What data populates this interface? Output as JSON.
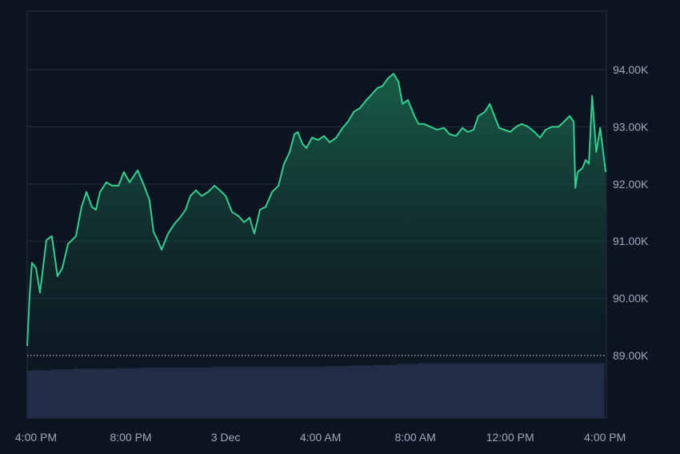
{
  "chart_data": {
    "type": "area",
    "title": "",
    "xlabel": "",
    "ylabel": "",
    "ylim": [
      88.0,
      95.0
    ],
    "y_unit": "K",
    "grid": true,
    "legend": "none",
    "baseline": 89.0,
    "y_ticks": [
      {
        "value": 94,
        "label": "94.00K"
      },
      {
        "value": 93,
        "label": "93.00K"
      },
      {
        "value": 92,
        "label": "92.00K"
      },
      {
        "value": 91,
        "label": "91.00K"
      },
      {
        "value": 90,
        "label": "90.00K"
      },
      {
        "value": 89,
        "label": "89.00K"
      }
    ],
    "x_ticks": [
      {
        "hours": 0,
        "label": "4:00 PM"
      },
      {
        "hours": 4,
        "label": "8:00 PM"
      },
      {
        "hours": 8,
        "label": "3 Dec"
      },
      {
        "hours": 12,
        "label": "4:00 AM"
      },
      {
        "hours": 16,
        "label": "8:00 AM"
      },
      {
        "hours": 20,
        "label": "12:00 PM"
      },
      {
        "hours": 24,
        "label": "4:00 PM"
      }
    ],
    "x_unit": "hours since 4:00 PM",
    "xlim": [
      -0.37,
      24.06
    ],
    "series": [
      {
        "name": "Price",
        "color": "#2fd08f",
        "points": [
          [
            -0.37,
            89.17
          ],
          [
            -0.27,
            90.04
          ],
          [
            -0.17,
            90.62
          ],
          [
            0,
            90.53
          ],
          [
            0.17,
            90.1
          ],
          [
            0.44,
            91.02
          ],
          [
            0.67,
            91.09
          ],
          [
            0.91,
            90.39
          ],
          [
            1.11,
            90.53
          ],
          [
            1.35,
            90.95
          ],
          [
            1.52,
            91.02
          ],
          [
            1.69,
            91.09
          ],
          [
            1.92,
            91.6
          ],
          [
            2.13,
            91.86
          ],
          [
            2.36,
            91.6
          ],
          [
            2.53,
            91.55
          ],
          [
            2.7,
            91.86
          ],
          [
            2.97,
            92.03
          ],
          [
            3.21,
            91.97
          ],
          [
            3.48,
            91.97
          ],
          [
            3.71,
            92.21
          ],
          [
            3.95,
            92.03
          ],
          [
            4.29,
            92.24
          ],
          [
            4.56,
            91.97
          ],
          [
            4.79,
            91.72
          ],
          [
            4.96,
            91.16
          ],
          [
            5.13,
            91.02
          ],
          [
            5.3,
            90.85
          ],
          [
            5.57,
            91.13
          ],
          [
            5.84,
            91.3
          ],
          [
            6.07,
            91.41
          ],
          [
            6.31,
            91.55
          ],
          [
            6.51,
            91.79
          ],
          [
            6.75,
            91.89
          ],
          [
            6.99,
            91.79
          ],
          [
            7.26,
            91.86
          ],
          [
            7.53,
            91.97
          ],
          [
            7.76,
            91.89
          ],
          [
            8.0,
            91.79
          ],
          [
            8.27,
            91.51
          ],
          [
            8.54,
            91.44
          ],
          [
            8.78,
            91.33
          ],
          [
            9.01,
            91.41
          ],
          [
            9.21,
            91.13
          ],
          [
            9.45,
            91.55
          ],
          [
            9.69,
            91.6
          ],
          [
            9.96,
            91.86
          ],
          [
            10.23,
            91.97
          ],
          [
            10.46,
            92.35
          ],
          [
            10.7,
            92.56
          ],
          [
            10.9,
            92.87
          ],
          [
            11.04,
            92.91
          ],
          [
            11.24,
            92.7
          ],
          [
            11.41,
            92.63
          ],
          [
            11.64,
            92.81
          ],
          [
            11.91,
            92.77
          ],
          [
            12.15,
            92.84
          ],
          [
            12.39,
            92.73
          ],
          [
            12.66,
            92.81
          ],
          [
            12.93,
            92.98
          ],
          [
            13.16,
            93.09
          ],
          [
            13.4,
            93.26
          ],
          [
            13.67,
            93.33
          ],
          [
            13.94,
            93.47
          ],
          [
            14.17,
            93.57
          ],
          [
            14.41,
            93.68
          ],
          [
            14.61,
            93.71
          ],
          [
            14.85,
            93.85
          ],
          [
            15.08,
            93.93
          ],
          [
            15.29,
            93.79
          ],
          [
            15.46,
            93.4
          ],
          [
            15.69,
            93.47
          ],
          [
            15.96,
            93.19
          ],
          [
            16.13,
            93.05
          ],
          [
            16.37,
            93.05
          ],
          [
            16.64,
            93.0
          ],
          [
            16.91,
            92.95
          ],
          [
            17.21,
            92.98
          ],
          [
            17.45,
            92.87
          ],
          [
            17.72,
            92.84
          ],
          [
            17.99,
            92.98
          ],
          [
            18.22,
            92.91
          ],
          [
            18.46,
            92.95
          ],
          [
            18.66,
            93.19
          ],
          [
            18.93,
            93.26
          ],
          [
            19.14,
            93.4
          ],
          [
            19.34,
            93.19
          ],
          [
            19.54,
            92.98
          ],
          [
            19.74,
            92.95
          ],
          [
            20.01,
            92.91
          ],
          [
            20.25,
            93.0
          ],
          [
            20.49,
            93.05
          ],
          [
            20.76,
            93.0
          ],
          [
            21.03,
            92.91
          ],
          [
            21.26,
            92.81
          ],
          [
            21.5,
            92.95
          ],
          [
            21.77,
            93.0
          ],
          [
            22.04,
            93.0
          ],
          [
            22.27,
            93.09
          ],
          [
            22.51,
            93.19
          ],
          [
            22.68,
            93.09
          ],
          [
            22.75,
            91.93
          ],
          [
            22.85,
            92.21
          ],
          [
            23.05,
            92.28
          ],
          [
            23.19,
            92.42
          ],
          [
            23.32,
            92.35
          ],
          [
            23.46,
            93.54
          ],
          [
            23.63,
            92.56
          ],
          [
            23.8,
            92.98
          ],
          [
            24.03,
            92.21
          ]
        ]
      },
      {
        "name": "Volume",
        "color": "#283253",
        "relative_values": [
          0.78,
          0.8,
          0.81,
          0.81,
          0.82,
          0.83,
          0.83,
          0.83,
          0.84,
          0.84,
          0.84,
          0.84,
          0.84,
          0.85,
          0.86,
          0.87,
          0.89,
          0.9,
          0.9,
          0.9,
          0.9,
          0.9,
          0.9,
          0.9,
          0.9
        ]
      }
    ]
  }
}
